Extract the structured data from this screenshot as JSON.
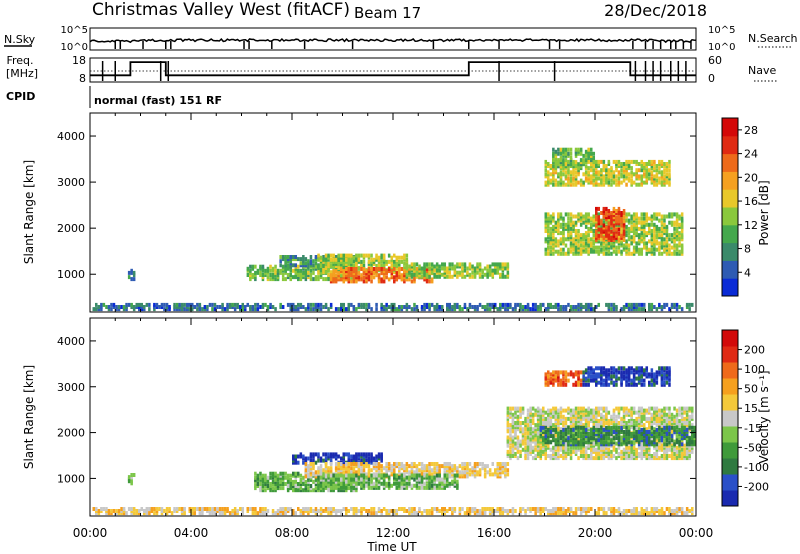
{
  "header": {
    "station": "Christmas Valley West (fitACF)",
    "beam": "Beam 17",
    "date": "28/Dec/2018"
  },
  "top_panels": {
    "nsky_label": "N.Sky",
    "nsky_ticks": [
      "10^5",
      "10^0"
    ],
    "nsearch_label": "N.Search",
    "nsearch_ticks": [
      "10^5",
      "10^0"
    ],
    "freq_label_1": "Freq.",
    "freq_label_2": "[MHz]",
    "freq_ticks": [
      "18",
      "8"
    ],
    "nave_label": "Nave",
    "nave_ticks": [
      "60",
      "0"
    ],
    "cpid_label": "CPID",
    "cpid_text": "normal (fast) 151 RF"
  },
  "colors": {
    "power": [
      "#0a2bd6",
      "#2e5bb3",
      "#3a8a6a",
      "#44a84c",
      "#8ac83c",
      "#e8c82a",
      "#f5a020",
      "#ee6a1a",
      "#e02a12",
      "#d40808"
    ],
    "velocity": [
      "#1a2ab0",
      "#2a50c8",
      "#2f7a40",
      "#3f9a3a",
      "#7cc64a",
      "#c8c8c8",
      "#f4c93a",
      "#f5a01e",
      "#ef6a1a",
      "#e02a14",
      "#d20a0a"
    ]
  },
  "chart_data": [
    {
      "type": "heatmap",
      "name": "Power",
      "xlabel": "Time UT",
      "ylabel": "Slant Range [km]",
      "xlim": [
        0,
        24
      ],
      "ylim": [
        180,
        4500
      ],
      "xticks": [
        "00:00",
        "04:00",
        "08:00",
        "12:00",
        "16:00",
        "20:00",
        "00:00"
      ],
      "yticks": [
        1000,
        2000,
        3000,
        4000
      ],
      "colorbar": {
        "label": "Power [dB]",
        "ticks": [
          4,
          8,
          12,
          16,
          20,
          24,
          28
        ],
        "range": [
          0,
          30
        ]
      },
      "regions": [
        {
          "t": [
            0.1,
            23.9
          ],
          "r": [
            200,
            320
          ],
          "value": 6
        },
        {
          "t": [
            1.5,
            1.8
          ],
          "r": [
            850,
            1050
          ],
          "value": 7
        },
        {
          "t": [
            6.2,
            10.5
          ],
          "r": [
            850,
            1150
          ],
          "value": 12
        },
        {
          "t": [
            7.5,
            10.5
          ],
          "r": [
            1150,
            1350
          ],
          "value": 9
        },
        {
          "t": [
            9.0,
            12.5
          ],
          "r": [
            1000,
            1400
          ],
          "value": 14
        },
        {
          "t": [
            9.5,
            13.5
          ],
          "r": [
            800,
            1100
          ],
          "value": 22
        },
        {
          "t": [
            12.5,
            16.5
          ],
          "r": [
            900,
            1200
          ],
          "value": 13
        },
        {
          "t": [
            18.0,
            23.5
          ],
          "r": [
            1400,
            2300
          ],
          "value": 14
        },
        {
          "t": [
            20.0,
            21.2
          ],
          "r": [
            1700,
            2400
          ],
          "value": 24
        },
        {
          "t": [
            18.0,
            23.0
          ],
          "r": [
            2900,
            3400
          ],
          "value": 15
        },
        {
          "t": [
            18.3,
            20.0
          ],
          "r": [
            3300,
            3700
          ],
          "value": 12
        }
      ]
    },
    {
      "type": "heatmap",
      "name": "Velocity",
      "xlabel": "Time UT",
      "ylabel": "Slant Range [km]",
      "xlim": [
        0,
        24
      ],
      "ylim": [
        180,
        4500
      ],
      "xticks": [
        "00:00",
        "04:00",
        "08:00",
        "12:00",
        "16:00",
        "20:00",
        "00:00"
      ],
      "yticks": [
        1000,
        2000,
        3000,
        4000
      ],
      "colorbar": {
        "label": "Velocity [m s⁻¹]",
        "ticks": [
          200,
          100,
          50,
          15,
          -15,
          -50,
          -100,
          -200
        ],
        "range": [
          -250,
          250
        ]
      },
      "regions": [
        {
          "t": [
            0.1,
            23.9
          ],
          "r": [
            200,
            320
          ],
          "value": 40
        },
        {
          "t": [
            1.5,
            1.8
          ],
          "r": [
            850,
            1050
          ],
          "value": -60
        },
        {
          "t": [
            6.5,
            10.5
          ],
          "r": [
            700,
            1100
          ],
          "value": -70
        },
        {
          "t": [
            8.0,
            11.5
          ],
          "r": [
            1300,
            1500
          ],
          "value": -200
        },
        {
          "t": [
            8.5,
            16.5
          ],
          "r": [
            1000,
            1300
          ],
          "value": 40
        },
        {
          "t": [
            9.0,
            14.5
          ],
          "r": [
            750,
            1050
          ],
          "value": -60
        },
        {
          "t": [
            16.5,
            23.9
          ],
          "r": [
            1400,
            2500
          ],
          "value": 0
        },
        {
          "t": [
            17.8,
            24.0
          ],
          "r": [
            1700,
            2100
          ],
          "value": -120
        },
        {
          "t": [
            18.0,
            19.5
          ],
          "r": [
            3000,
            3300
          ],
          "value": 150
        },
        {
          "t": [
            19.5,
            23.0
          ],
          "r": [
            3000,
            3400
          ],
          "value": -200
        }
      ]
    }
  ]
}
